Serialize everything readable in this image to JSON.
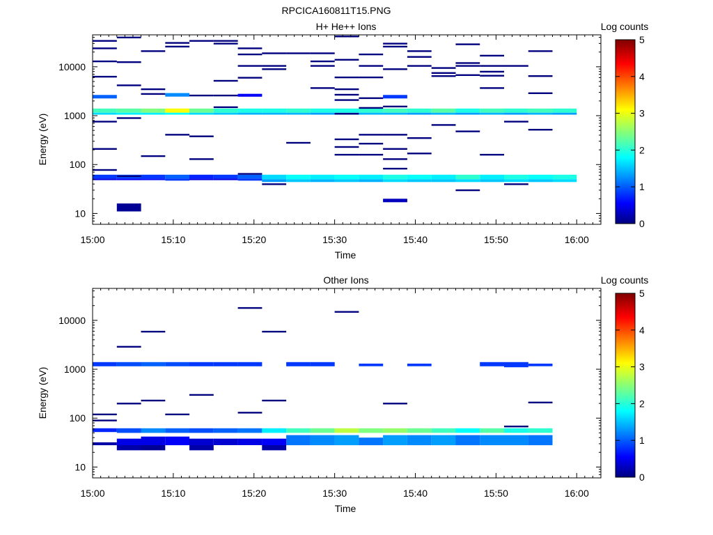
{
  "page_title": "RPCICA160811T15.PNG",
  "colorbar_ticks": [
    "0",
    "1",
    "2",
    "3",
    "4",
    "5"
  ],
  "chart_data": [
    {
      "type": "heatmap",
      "title": "H+ He++ Ions",
      "xlabel": "Time",
      "ylabel": "Energy (eV)",
      "colorbar_label": "Log counts",
      "colorbar_range": [
        0,
        5
      ],
      "x_range": [
        "15:00",
        "16:03"
      ],
      "y_range": [
        6,
        45000
      ],
      "y_scale": "log",
      "x_ticks": [
        "15:00",
        "15:10",
        "15:20",
        "15:30",
        "15:40",
        "15:50",
        "16:00"
      ],
      "y_ticks": [
        "10",
        "100",
        "1000",
        "10000"
      ],
      "y_tick_values": [
        10,
        100,
        1000,
        10000
      ],
      "cells": [
        [
          0,
          1150,
          1400,
          2.2
        ],
        [
          0,
          1050,
          1150,
          1.7
        ],
        [
          0,
          2250,
          2650,
          1.1
        ],
        [
          0,
          52,
          62,
          0.9
        ],
        [
          0,
          48,
          52,
          0.5
        ],
        [
          3,
          1150,
          1400,
          2.3
        ],
        [
          3,
          1050,
          1150,
          1.8
        ],
        [
          3,
          52,
          62,
          1.0
        ],
        [
          3,
          48,
          52,
          0.6
        ],
        [
          3,
          11,
          16,
          0.1
        ],
        [
          6,
          1150,
          1400,
          2.5
        ],
        [
          6,
          1050,
          1150,
          1.8
        ],
        [
          6,
          52,
          62,
          0.9
        ],
        [
          6,
          48,
          52,
          0.7
        ],
        [
          9,
          1150,
          1400,
          3.1
        ],
        [
          9,
          1050,
          1150,
          1.9
        ],
        [
          9,
          2450,
          2900,
          1.3
        ],
        [
          9,
          52,
          62,
          1.1
        ],
        [
          9,
          47,
          52,
          0.9
        ],
        [
          12,
          1150,
          1400,
          2.4
        ],
        [
          12,
          1050,
          1150,
          1.7
        ],
        [
          12,
          52,
          62,
          0.8
        ],
        [
          12,
          48,
          52,
          0.5
        ],
        [
          15,
          1150,
          1400,
          2.1
        ],
        [
          15,
          1050,
          1150,
          1.6
        ],
        [
          15,
          52,
          62,
          0.9
        ],
        [
          15,
          48,
          52,
          0.5
        ],
        [
          18,
          1150,
          1400,
          2.0
        ],
        [
          18,
          1050,
          1150,
          1.5
        ],
        [
          18,
          2450,
          2800,
          0.6
        ],
        [
          18,
          52,
          62,
          1.1
        ],
        [
          18,
          47,
          52,
          0.9
        ],
        [
          21,
          1150,
          1400,
          2.0
        ],
        [
          21,
          1050,
          1150,
          1.5
        ],
        [
          21,
          50,
          62,
          1.7
        ],
        [
          21,
          44,
          50,
          1.4
        ],
        [
          24,
          1150,
          1400,
          2.1
        ],
        [
          24,
          1050,
          1150,
          1.5
        ],
        [
          24,
          50,
          62,
          1.9
        ],
        [
          24,
          44,
          50,
          1.6
        ],
        [
          27,
          1150,
          1400,
          2.0
        ],
        [
          27,
          1050,
          1150,
          1.4
        ],
        [
          27,
          50,
          62,
          1.8
        ],
        [
          27,
          44,
          50,
          1.5
        ],
        [
          30,
          1150,
          1400,
          2.0
        ],
        [
          30,
          1050,
          1150,
          1.4
        ],
        [
          30,
          50,
          62,
          1.9
        ],
        [
          30,
          44,
          50,
          1.6
        ],
        [
          33,
          1150,
          1400,
          2.1
        ],
        [
          33,
          1050,
          1150,
          1.5
        ],
        [
          33,
          50,
          62,
          1.8
        ],
        [
          33,
          44,
          50,
          1.5
        ],
        [
          36,
          1150,
          1400,
          2.2
        ],
        [
          36,
          1050,
          1150,
          1.5
        ],
        [
          36,
          2250,
          2650,
          0.9
        ],
        [
          36,
          50,
          62,
          2.0
        ],
        [
          36,
          44,
          50,
          1.7
        ],
        [
          36,
          17,
          20,
          0.3
        ],
        [
          39,
          1150,
          1400,
          2.1
        ],
        [
          39,
          1050,
          1150,
          1.4
        ],
        [
          39,
          50,
          62,
          1.9
        ],
        [
          39,
          44,
          50,
          1.6
        ],
        [
          42,
          1150,
          1400,
          2.3
        ],
        [
          42,
          1050,
          1150,
          1.5
        ],
        [
          42,
          50,
          62,
          1.8
        ],
        [
          42,
          44,
          50,
          1.6
        ],
        [
          45,
          1150,
          1400,
          2.0
        ],
        [
          45,
          1050,
          1150,
          1.4
        ],
        [
          45,
          50,
          62,
          2.1
        ],
        [
          45,
          44,
          50,
          1.7
        ],
        [
          48,
          1150,
          1400,
          2.2
        ],
        [
          48,
          1050,
          1150,
          1.5
        ],
        [
          48,
          50,
          62,
          1.8
        ],
        [
          48,
          44,
          50,
          1.6
        ],
        [
          51,
          1150,
          1400,
          2.1
        ],
        [
          51,
          1050,
          1150,
          1.4
        ],
        [
          51,
          50,
          62,
          2.0
        ],
        [
          51,
          44,
          50,
          1.7
        ],
        [
          54,
          1150,
          1400,
          2.2
        ],
        [
          54,
          1050,
          1150,
          1.5
        ],
        [
          54,
          50,
          62,
          1.9
        ],
        [
          54,
          44,
          50,
          1.6
        ],
        [
          57,
          1150,
          1400,
          2.1
        ],
        [
          57,
          1050,
          1150,
          1.4
        ],
        [
          57,
          50,
          62,
          2.0
        ],
        [
          57,
          44,
          50,
          1.7
        ]
      ],
      "lines": [
        [
          0,
          78
        ],
        [
          0,
          210
        ],
        [
          0,
          760
        ],
        [
          0,
          6300
        ],
        [
          0,
          13000
        ],
        [
          0,
          24000
        ],
        [
          0,
          34000
        ],
        [
          3,
          58
        ],
        [
          3,
          900
        ],
        [
          3,
          4200
        ],
        [
          3,
          12500
        ],
        [
          3,
          40000
        ],
        [
          6,
          150
        ],
        [
          6,
          2800
        ],
        [
          6,
          3500
        ],
        [
          6,
          21000
        ],
        [
          9,
          410
        ],
        [
          9,
          26000
        ],
        [
          9,
          31000
        ],
        [
          12,
          130
        ],
        [
          12,
          380
        ],
        [
          12,
          2600
        ],
        [
          12,
          34000
        ],
        [
          15,
          1500
        ],
        [
          15,
          2600
        ],
        [
          15,
          5200
        ],
        [
          15,
          30000
        ],
        [
          15,
          34000
        ],
        [
          18,
          65
        ],
        [
          18,
          6000
        ],
        [
          18,
          10500
        ],
        [
          18,
          18000
        ],
        [
          18,
          24000
        ],
        [
          21,
          40
        ],
        [
          21,
          9000
        ],
        [
          21,
          10500
        ],
        [
          21,
          19000
        ],
        [
          24,
          280
        ],
        [
          24,
          19000
        ],
        [
          27,
          3700
        ],
        [
          27,
          10500
        ],
        [
          27,
          13000
        ],
        [
          27,
          19000
        ],
        [
          30,
          160
        ],
        [
          30,
          230
        ],
        [
          30,
          330
        ],
        [
          30,
          1100
        ],
        [
          30,
          2100
        ],
        [
          30,
          2700
        ],
        [
          30,
          3500
        ],
        [
          30,
          6100
        ],
        [
          30,
          14000
        ],
        [
          30,
          42000
        ],
        [
          33,
          160
        ],
        [
          33,
          270
        ],
        [
          33,
          410
        ],
        [
          33,
          1450
        ],
        [
          33,
          2300
        ],
        [
          33,
          6100
        ],
        [
          33,
          10500
        ],
        [
          33,
          18000
        ],
        [
          36,
          83
        ],
        [
          36,
          130
        ],
        [
          36,
          210
        ],
        [
          36,
          410
        ],
        [
          36,
          1550
        ],
        [
          36,
          9000
        ],
        [
          36,
          26000
        ],
        [
          36,
          30000
        ],
        [
          39,
          170
        ],
        [
          39,
          350
        ],
        [
          39,
          10500
        ],
        [
          39,
          16000
        ],
        [
          39,
          21000
        ],
        [
          42,
          650
        ],
        [
          42,
          6500
        ],
        [
          42,
          7500
        ],
        [
          42,
          9500
        ],
        [
          45,
          30
        ],
        [
          45,
          480
        ],
        [
          45,
          6800
        ],
        [
          45,
          10500
        ],
        [
          45,
          12000
        ],
        [
          45,
          29000
        ],
        [
          48,
          160
        ],
        [
          48,
          3700
        ],
        [
          48,
          6600
        ],
        [
          48,
          8000
        ],
        [
          48,
          10500
        ],
        [
          48,
          17000
        ],
        [
          51,
          40
        ],
        [
          51,
          760
        ],
        [
          51,
          10500
        ],
        [
          54,
          520
        ],
        [
          54,
          2900
        ],
        [
          54,
          6500
        ],
        [
          54,
          21000
        ]
      ]
    },
    {
      "type": "heatmap",
      "title": "Other Ions",
      "xlabel": "Time",
      "ylabel": "Energy (eV)",
      "colorbar_label": "Log counts",
      "colorbar_range": [
        0,
        5
      ],
      "x_range": [
        "15:00",
        "16:03"
      ],
      "y_range": [
        6,
        45000
      ],
      "y_scale": "log",
      "x_ticks": [
        "15:00",
        "15:10",
        "15:20",
        "15:30",
        "15:40",
        "15:50",
        "16:00"
      ],
      "y_ticks": [
        "10",
        "100",
        "1000",
        "10000"
      ],
      "y_tick_values": [
        10,
        100,
        1000,
        10000
      ],
      "cells": [
        [
          0,
          1150,
          1400,
          0.9
        ],
        [
          0,
          52,
          62,
          0.8
        ],
        [
          0,
          28,
          32,
          0.2
        ],
        [
          3,
          1150,
          1400,
          1.0
        ],
        [
          3,
          50,
          62,
          1.0
        ],
        [
          3,
          28,
          38,
          0.5
        ],
        [
          3,
          22,
          28,
          0.2
        ],
        [
          6,
          1150,
          1400,
          1.1
        ],
        [
          6,
          50,
          62,
          1.3
        ],
        [
          6,
          28,
          42,
          0.5
        ],
        [
          6,
          22,
          28,
          0.1
        ],
        [
          9,
          1150,
          1400,
          1.0
        ],
        [
          9,
          50,
          62,
          1.1
        ],
        [
          9,
          28,
          42,
          0.6
        ],
        [
          12,
          1150,
          1400,
          0.9
        ],
        [
          12,
          50,
          62,
          1.0
        ],
        [
          12,
          28,
          38,
          0.4
        ],
        [
          12,
          22,
          28,
          0.2
        ],
        [
          15,
          1150,
          1400,
          0.9
        ],
        [
          15,
          50,
          62,
          1.1
        ],
        [
          15,
          28,
          38,
          0.4
        ],
        [
          18,
          1150,
          1400,
          0.9
        ],
        [
          18,
          50,
          62,
          1.2
        ],
        [
          18,
          28,
          38,
          0.5
        ],
        [
          21,
          50,
          62,
          1.8
        ],
        [
          21,
          28,
          38,
          0.6
        ],
        [
          21,
          22,
          28,
          0.2
        ],
        [
          24,
          1150,
          1400,
          0.9
        ],
        [
          24,
          50,
          62,
          2.2
        ],
        [
          24,
          28,
          45,
          1.2
        ],
        [
          27,
          1150,
          1400,
          0.9
        ],
        [
          27,
          50,
          62,
          2.4
        ],
        [
          27,
          28,
          45,
          1.3
        ],
        [
          30,
          50,
          62,
          2.8
        ],
        [
          30,
          28,
          45,
          1.4
        ],
        [
          33,
          1150,
          1300,
          0.9
        ],
        [
          33,
          50,
          62,
          2.5
        ],
        [
          33,
          28,
          40,
          1.2
        ],
        [
          36,
          50,
          62,
          2.6
        ],
        [
          36,
          28,
          45,
          1.4
        ],
        [
          39,
          1150,
          1300,
          0.9
        ],
        [
          39,
          50,
          62,
          2.4
        ],
        [
          39,
          28,
          45,
          1.3
        ],
        [
          42,
          50,
          62,
          2.2
        ],
        [
          42,
          28,
          45,
          1.4
        ],
        [
          45,
          50,
          62,
          1.9
        ],
        [
          45,
          28,
          45,
          1.2
        ],
        [
          48,
          1150,
          1400,
          0.9
        ],
        [
          48,
          50,
          62,
          2.3
        ],
        [
          48,
          28,
          45,
          1.3
        ],
        [
          51,
          1100,
          1400,
          0.9
        ],
        [
          51,
          50,
          62,
          2.0
        ],
        [
          51,
          28,
          45,
          1.3
        ],
        [
          54,
          1150,
          1300,
          0.9
        ],
        [
          54,
          50,
          62,
          2.1
        ],
        [
          54,
          28,
          45,
          1.2
        ]
      ],
      "lines": [
        [
          0,
          90
        ],
        [
          0,
          120
        ],
        [
          3,
          200
        ],
        [
          3,
          2900
        ],
        [
          6,
          230
        ],
        [
          6,
          5900
        ],
        [
          9,
          120
        ],
        [
          12,
          300
        ],
        [
          18,
          130
        ],
        [
          18,
          18000
        ],
        [
          21,
          230
        ],
        [
          21,
          5900
        ],
        [
          30,
          15000
        ],
        [
          36,
          200
        ],
        [
          51,
          68
        ],
        [
          54,
          210
        ]
      ]
    }
  ]
}
